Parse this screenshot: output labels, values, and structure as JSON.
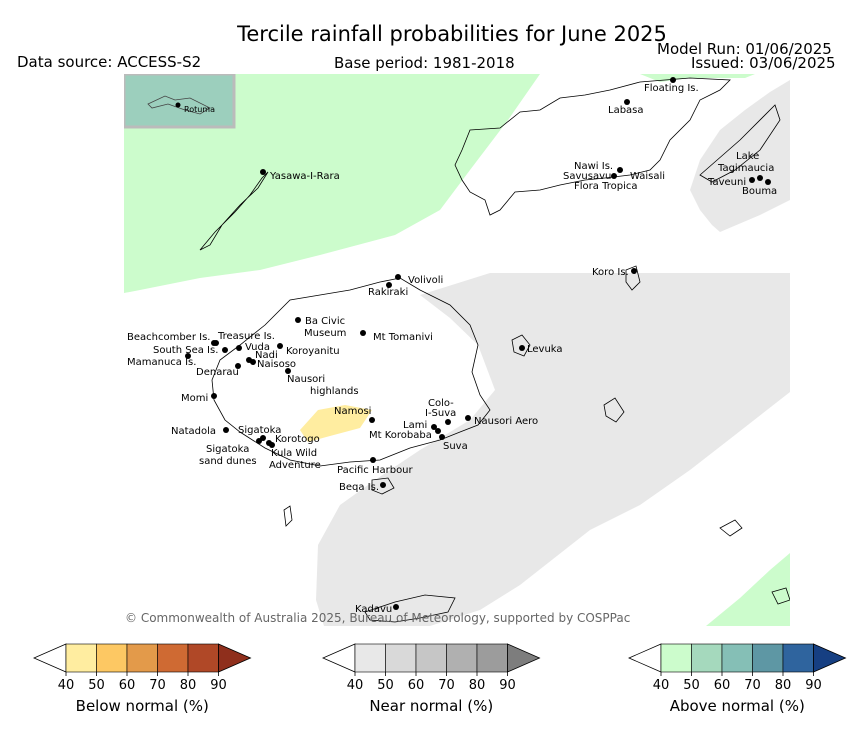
{
  "header": {
    "title": "Tercile rainfall probabilities for June 2025",
    "data_source": "Data source: ACCESS-S2",
    "base_period": "Base period: 1981-2018",
    "model_run": "Model Run: 01/06/2025",
    "issued": "Issued: 03/06/2025"
  },
  "inset": {
    "label": "Rotuma"
  },
  "places": [
    {
      "name": "Floating Is."
    },
    {
      "name": "Labasa"
    },
    {
      "name": "Yasawa-I-Rara"
    },
    {
      "name": "Nawi Is."
    },
    {
      "name": "Savusavu"
    },
    {
      "name": "Waisali"
    },
    {
      "name": "Flora Tropica"
    },
    {
      "name": "Lake"
    },
    {
      "name": "Tagimaucia"
    },
    {
      "name": "Taveuni"
    },
    {
      "name": "Bouma"
    },
    {
      "name": "Koro Is."
    },
    {
      "name": "Volivoli"
    },
    {
      "name": "Rakiraki"
    },
    {
      "name": "Ba Civic"
    },
    {
      "name": "Museum"
    },
    {
      "name": "Mt Tomanivi"
    },
    {
      "name": "Beachcomber Is."
    },
    {
      "name": "Treasure Is."
    },
    {
      "name": "South Sea Is."
    },
    {
      "name": "Vuda"
    },
    {
      "name": "Koroyanitu"
    },
    {
      "name": "Nadi"
    },
    {
      "name": "Naisoso"
    },
    {
      "name": "Mamanuca Is."
    },
    {
      "name": "Denarau"
    },
    {
      "name": "Levuka"
    },
    {
      "name": "Nausori"
    },
    {
      "name": "highlands"
    },
    {
      "name": "Momi"
    },
    {
      "name": "Namosi"
    },
    {
      "name": "Colo-"
    },
    {
      "name": "I-Suva"
    },
    {
      "name": "Nausori Aero"
    },
    {
      "name": "Lami"
    },
    {
      "name": "Mt Korobaba"
    },
    {
      "name": "Suva"
    },
    {
      "name": "Natadola"
    },
    {
      "name": "Sigatoka"
    },
    {
      "name": "Korotogo"
    },
    {
      "name": "Sigatoka"
    },
    {
      "name": "sand dunes"
    },
    {
      "name": "Kula Wild"
    },
    {
      "name": "Adventure"
    },
    {
      "name": "Pacific Harbour"
    },
    {
      "name": "Beqa Is."
    },
    {
      "name": "Kadavu"
    }
  ],
  "copyright": "© Commonwealth of Australia 2025, Bureau of Meteorology, supported by COSPPac",
  "legend": {
    "ticks": [
      "40",
      "50",
      "60",
      "70",
      "80",
      "90"
    ],
    "bars": [
      {
        "title": "Below normal (%)",
        "colors": [
          "#ffeda0",
          "#fdc863",
          "#e39a4a",
          "#cf6a33",
          "#b04827",
          "#8f2f1c"
        ]
      },
      {
        "title": "Near normal (%)",
        "colors": [
          "#e8e8e8",
          "#d9d9d9",
          "#c6c6c6",
          "#b0b0b0",
          "#9c9c9c",
          "#7d7d7d"
        ]
      },
      {
        "title": "Above normal (%)",
        "colors": [
          "#ccfccc",
          "#a5d9bd",
          "#85bfb6",
          "#5e97a4",
          "#2f649e",
          "#163f82"
        ]
      }
    ]
  },
  "fill_colors": {
    "above_normal_40_50": "#ccfccc",
    "near_normal_40_50": "#e8e8e8",
    "below_normal_40_50": "#ffeda0"
  }
}
